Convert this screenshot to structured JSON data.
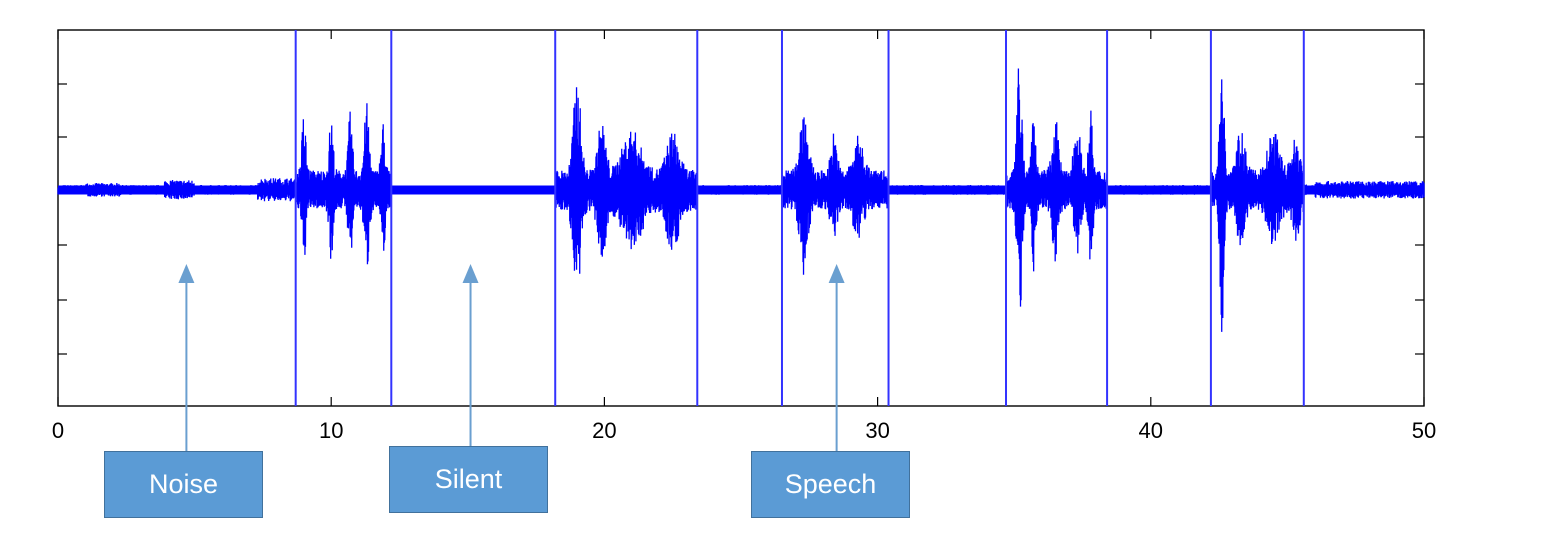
{
  "chart_data": {
    "type": "line",
    "title": "",
    "xlabel": "",
    "ylabel": "",
    "xlim": [
      0,
      50
    ],
    "ylim": [
      -1,
      1
    ],
    "x_ticks": [
      0,
      10,
      20,
      30,
      40,
      50
    ],
    "x_tick_labels": [
      "0",
      "10",
      "20",
      "30",
      "40",
      "50"
    ],
    "y_tick_labels_visible": false,
    "grid": false,
    "series_color": "#0000ff",
    "boundary_color": "#3333ff",
    "segment_boundaries": [
      8.7,
      12.2,
      18.2,
      23.4,
      26.5,
      30.4,
      34.7,
      38.4,
      42.2,
      45.6
    ],
    "annotations": [
      {
        "label": "Noise",
        "x": 4.7
      },
      {
        "label": "Silent",
        "x": 15.1
      },
      {
        "label": "Speech",
        "x": 28.5
      }
    ],
    "colors": {
      "callout_fill": "#5b9bd5",
      "callout_border": "#41719c",
      "arrow": "#6a9fd0"
    }
  }
}
